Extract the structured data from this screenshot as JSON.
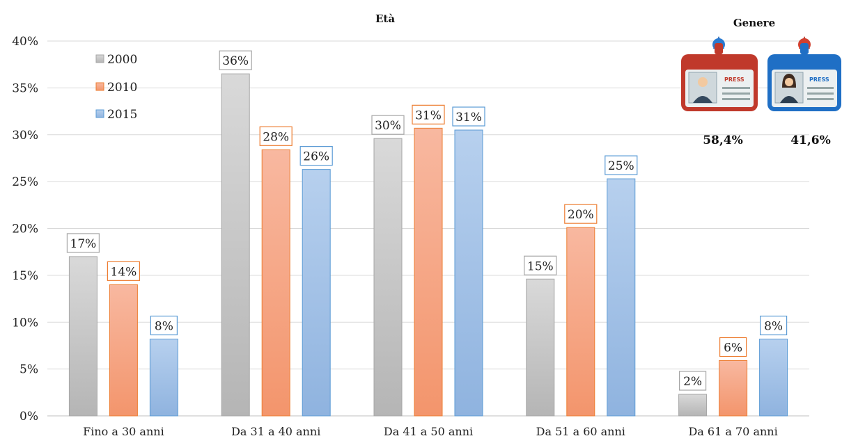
{
  "chart_data": {
    "type": "bar",
    "title": "Età",
    "categories": [
      "Fino a 30 anni",
      "Da 31 a 40 anni",
      "Da 41 a 50 anni",
      "Da 51 a 60 anni",
      "Da 61 a 70 anni"
    ],
    "series": [
      {
        "name": "2000",
        "color": "#c8c8c8",
        "border": "#a6a6a6",
        "values": [
          17,
          36.5,
          29.6,
          14.6,
          2.3
        ],
        "labels": [
          "17%",
          "36%",
          "30%",
          "15%",
          "2%"
        ]
      },
      {
        "name": "2010",
        "color": "#f5a07e",
        "border": "#ed7d31",
        "values": [
          14,
          28.4,
          30.7,
          20.1,
          5.9
        ],
        "labels": [
          "14%",
          "28%",
          "31%",
          "20%",
          "6%"
        ]
      },
      {
        "name": "2015",
        "color": "#9dbfe6",
        "border": "#5b9bd5",
        "values": [
          8.2,
          26.3,
          30.5,
          25.3,
          8.2
        ],
        "labels": [
          "8%",
          "26%",
          "31%",
          "25%",
          "8%"
        ]
      }
    ],
    "yticks": [
      "0%",
      "5%",
      "10%",
      "15%",
      "20%",
      "25%",
      "30%",
      "35%",
      "40%"
    ],
    "ylim": [
      0,
      40
    ],
    "grid": true,
    "legend": "top-left"
  },
  "gender": {
    "title": "Genere",
    "male": {
      "value": "58,4%",
      "badge_text": "PRESS",
      "icon": "male-press-badge-icon",
      "color": "#c0392b"
    },
    "female": {
      "value": "41,6%",
      "badge_text": "PRESS",
      "icon": "female-press-badge-icon",
      "color": "#1f6fc5"
    }
  }
}
